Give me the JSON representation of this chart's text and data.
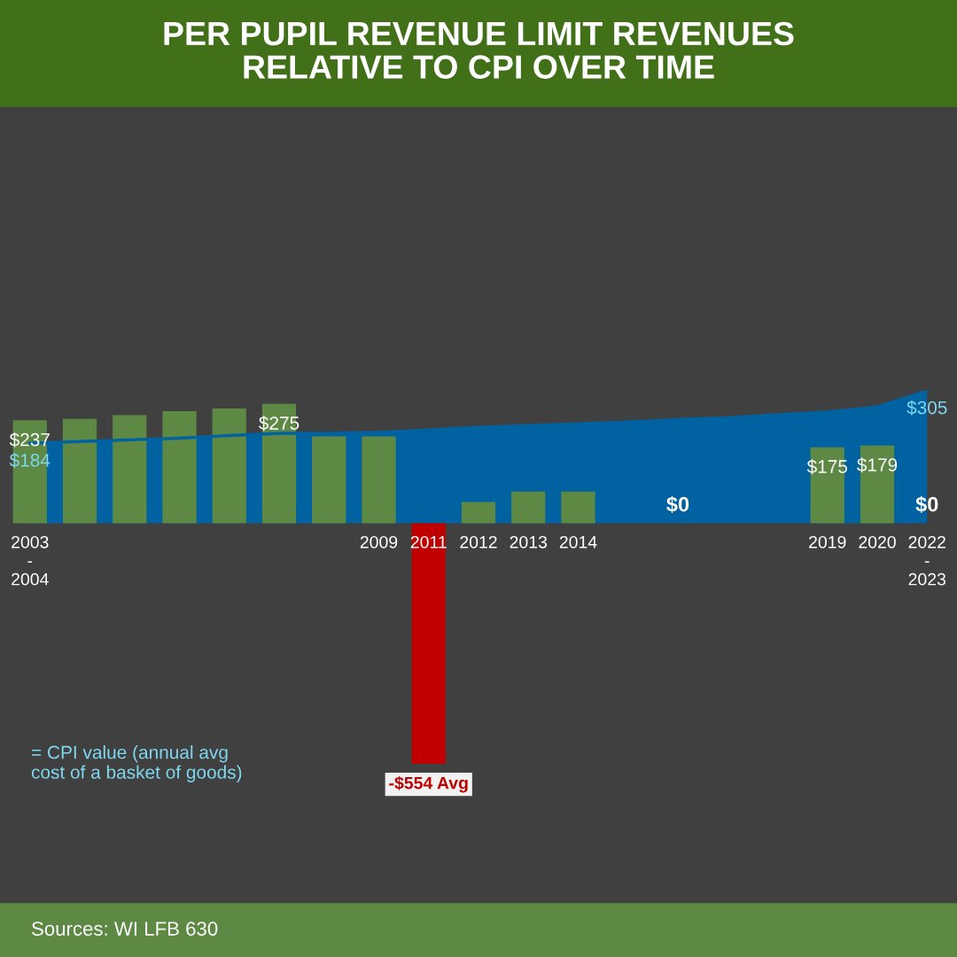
{
  "chart_data": {
    "type": "bar",
    "title": "PER PUPIL REVENUE LIMIT REVENUES\nRELATIVE TO CPI OVER TIME",
    "categories": [
      "2003\n-\n2004",
      null,
      null,
      null,
      null,
      null,
      null,
      "2009",
      "2011",
      "2012",
      "2013",
      "2014",
      null,
      null,
      null,
      null,
      "2019",
      "2020",
      "2022\n-\n2023"
    ],
    "series": [
      {
        "type": "area",
        "color": "#0062a0",
        "values": [
          184,
          188,
          192,
          196,
          202,
          207,
          207,
          209,
          215,
          221,
          225,
          229,
          233,
          239,
          243,
          250,
          256,
          268,
          305
        ],
        "value_labels": [
          "$184",
          null,
          null,
          null,
          null,
          null,
          null,
          null,
          null,
          null,
          null,
          null,
          null,
          null,
          null,
          null,
          null,
          null,
          "$305"
        ]
      },
      {
        "type": "bar",
        "colors": [
          "#5e8945",
          "#5e8945",
          "#5e8945",
          "#5e8945",
          "#5e8945",
          "#5e8945",
          "#5e8945",
          "#5e8945",
          "#c00000",
          "#5e8945",
          "#5e8945",
          "#5e8945",
          "#5e8945",
          "#5e8945",
          "#5e8945",
          "#5e8945",
          "#5e8945",
          "#5e8945",
          "#5e8945"
        ],
        "values": [
          237,
          240,
          249,
          258,
          264,
          275,
          200,
          200,
          -554,
          49,
          73,
          73,
          0,
          0,
          0,
          0,
          175,
          179,
          0
        ],
        "value_labels": [
          "$237",
          null,
          null,
          null,
          null,
          "$275",
          null,
          null,
          "-$554 Avg",
          null,
          null,
          null,
          null,
          "$0",
          null,
          null,
          "$175",
          "$179",
          "$0"
        ]
      }
    ],
    "tick_labels": "x",
    "legend": false,
    "grid": false,
    "annotations": [
      "= CPI value (annual avg\ncost of a basket of goods)",
      "Sources: WI LFB 630"
    ]
  }
}
